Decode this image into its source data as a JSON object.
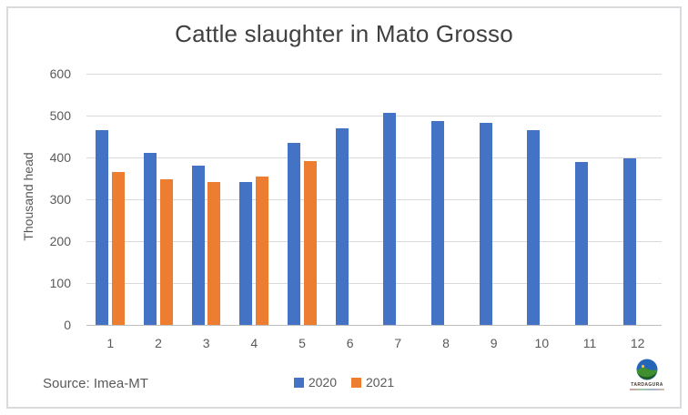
{
  "frame": {
    "border_color": "#d9dadd",
    "background": "#ffffff"
  },
  "chart_data": {
    "type": "bar",
    "title": "Cattle slaughter in Mato Grosso",
    "xlabel": "",
    "ylabel": "Thousand head",
    "categories": [
      "1",
      "2",
      "3",
      "4",
      "5",
      "6",
      "7",
      "8",
      "9",
      "10",
      "11",
      "12"
    ],
    "series": [
      {
        "name": "2020",
        "color": "#4472C4",
        "values": [
          465,
          411,
          380,
          341,
          435,
          469,
          506,
          488,
          482,
          465,
          390,
          398
        ]
      },
      {
        "name": "2021",
        "color": "#ED7D31",
        "values": [
          365,
          348,
          341,
          354,
          391,
          null,
          null,
          null,
          null,
          null,
          null,
          null
        ]
      }
    ],
    "ylim": [
      0,
      600
    ],
    "yticks": [
      0,
      100,
      200,
      300,
      400,
      500,
      600
    ],
    "grid": true,
    "gridline_color": "#d9d9d9",
    "axis_line_color": "#bfbfbf",
    "tick_label_color": "#595959",
    "title_color": "#404040",
    "legend_position": "bottom-center"
  },
  "footer": {
    "source_label": "Source: Imea-MT"
  },
  "logo": {
    "text": "TARDAGURA",
    "globe_colors": {
      "blue": "#2566b8",
      "green": "#3f8f2f",
      "dark_green": "#1e5e23",
      "sun": "#f6c12f"
    }
  }
}
